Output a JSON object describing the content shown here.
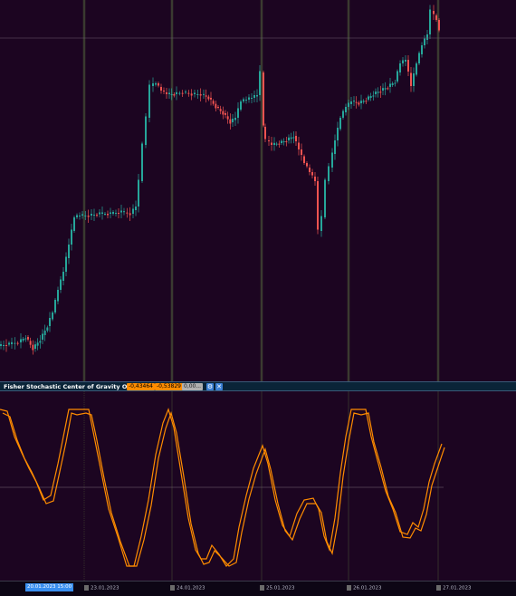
{
  "indicator": {
    "title": "Fisher Stochastic Center of Gravity Oscillator",
    "value1": "-0,43464",
    "value2": "-0,53829",
    "value3": "0,00...",
    "settings_icon": "gear-icon",
    "close_icon": "close-icon"
  },
  "time_axis": {
    "cursor_label": "20.01.2023 15:00",
    "labels": [
      "23.01.2023",
      "24.01.2023",
      "25.01.2023",
      "26.01.2023",
      "27.01.2023"
    ]
  },
  "colors": {
    "background": "#1c0521",
    "bull": "#26a69a",
    "bear": "#ef5350",
    "oscillator": "#ff8c00"
  }
}
